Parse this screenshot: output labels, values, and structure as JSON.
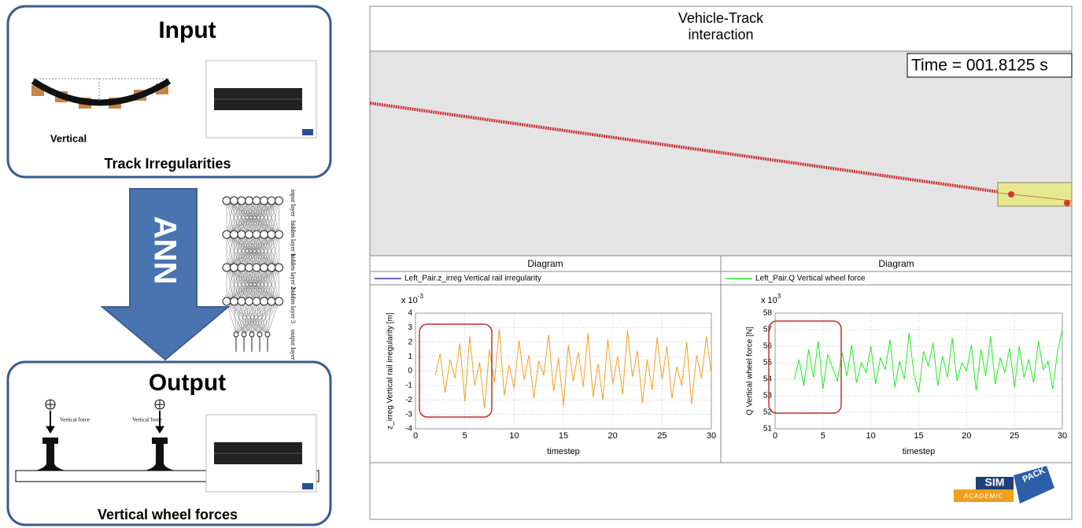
{
  "input_box": {
    "title": "Input",
    "caption": "Vertical",
    "label": "Track Irregularities"
  },
  "arrow": {
    "label": "ANN"
  },
  "ann_layers": {
    "labels": [
      "input layer",
      "hidden layer 1",
      "hidden layer 2",
      "hidden layer 3",
      "output layer"
    ]
  },
  "output_box": {
    "title": "Output",
    "force_labels": [
      "Vertical force",
      "Vertical force"
    ],
    "label": "Vertical wheel forces"
  },
  "sim": {
    "title_lines": [
      "Vehicle-Track",
      "interaction"
    ],
    "time_label": "Time = 001.8125 s"
  },
  "logo": {
    "sim": "SIM",
    "pack": "PACK",
    "academic": "ACADEMIC"
  },
  "chart_data": [
    {
      "type": "line",
      "title": "Diagram",
      "x_axis_label": "timestep",
      "y_axis_label": "z_irreg Vertical rail irregularity [m]",
      "y_multiplier": "x 10",
      "y_exponent": "-3",
      "grid": true,
      "xlim": [
        0,
        30
      ],
      "xticks": [
        0,
        5,
        10,
        15,
        20,
        25,
        30
      ],
      "ylim": [
        -4,
        4
      ],
      "yticks": [
        -4,
        -3,
        -2,
        -1,
        0,
        1,
        2,
        3,
        4
      ],
      "x": [
        2,
        2.5,
        3,
        3.5,
        4,
        4.5,
        5,
        5.5,
        6,
        6.5,
        7,
        7.5,
        8,
        8.5,
        9,
        9.5,
        10,
        10.5,
        11,
        11.5,
        12,
        12.5,
        13,
        13.5,
        14,
        14.5,
        15,
        15.5,
        16,
        16.5,
        17,
        17.5,
        18,
        18.5,
        19,
        19.5,
        20,
        20.5,
        21,
        21.5,
        22,
        22.5,
        23,
        23.5,
        24,
        24.5,
        25,
        25.5,
        26,
        26.5,
        27,
        27.5,
        28,
        28.5,
        29,
        29.5,
        30
      ],
      "series": [
        {
          "name": "Left_Pair.z_irreg Vertical rail irregularity",
          "color": "#f5a020",
          "legend_color": "#3a3aa0",
          "values": [
            -0.3,
            1.2,
            -1.5,
            0.8,
            -0.5,
            1.9,
            -2.1,
            2.4,
            -1.0,
            0.6,
            -2.6,
            1.5,
            -0.8,
            2.9,
            -1.7,
            0.4,
            -1.2,
            2.1,
            -0.6,
            1.1,
            -1.9,
            0.7,
            -0.3,
            2.5,
            -1.4,
            0.9,
            -2.4,
            1.8,
            -0.7,
            1.3,
            -1.1,
            2.6,
            -1.8,
            0.5,
            -2.0,
            2.2,
            -0.9,
            1.0,
            -1.6,
            2.8,
            -0.4,
            1.4,
            -2.2,
            0.8,
            -1.3,
            2.3,
            -0.6,
            1.7,
            -1.9,
            0.3,
            -1.0,
            2.0,
            -2.3,
            1.1,
            -0.5,
            2.4,
            -0.2
          ]
        }
      ]
    },
    {
      "type": "line",
      "title": "Diagram",
      "x_axis_label": "timestep",
      "y_axis_label": "Q Vertical wheel force [N]",
      "y_multiplier": "x 10",
      "y_exponent": "3",
      "grid": true,
      "xlim": [
        0,
        30
      ],
      "xticks": [
        0,
        5,
        10,
        15,
        20,
        25,
        30
      ],
      "ylim": [
        51,
        58
      ],
      "yticks": [
        51,
        52,
        53,
        54,
        55,
        56,
        57,
        58
      ],
      "x": [
        2,
        2.5,
        3,
        3.5,
        4,
        4.5,
        5,
        5.5,
        6,
        6.5,
        7,
        7.5,
        8,
        8.5,
        9,
        9.5,
        10,
        10.5,
        11,
        11.5,
        12,
        12.5,
        13,
        13.5,
        14,
        14.5,
        15,
        15.5,
        16,
        16.5,
        17,
        17.5,
        18,
        18.5,
        19,
        19.5,
        20,
        20.5,
        21,
        21.5,
        22,
        22.5,
        23,
        23.5,
        24,
        24.5,
        25,
        25.5,
        26,
        26.5,
        27,
        27.5,
        28,
        28.5,
        29,
        29.5,
        30
      ],
      "series": [
        {
          "name": "Left_Pair.Q Vertical wheel force",
          "color": "#22ee22",
          "legend_color": "#22ee22",
          "values": [
            54.0,
            55.2,
            53.6,
            55.8,
            54.1,
            56.3,
            53.4,
            55.5,
            54.7,
            53.9,
            55.6,
            54.2,
            56.1,
            53.8,
            55.0,
            54.4,
            56.0,
            53.7,
            55.3,
            54.6,
            56.4,
            53.5,
            55.1,
            54.0,
            56.8,
            54.3,
            53.2,
            55.7,
            54.8,
            56.2,
            53.6,
            55.4,
            54.1,
            56.5,
            53.9,
            55.0,
            54.5,
            56.1,
            53.3,
            55.8,
            54.2,
            56.6,
            53.7,
            55.3,
            54.4,
            55.9,
            53.5,
            56.0,
            54.1,
            55.2,
            53.8,
            56.3,
            54.6,
            55.1,
            53.4,
            55.7,
            57.0
          ]
        }
      ]
    }
  ]
}
